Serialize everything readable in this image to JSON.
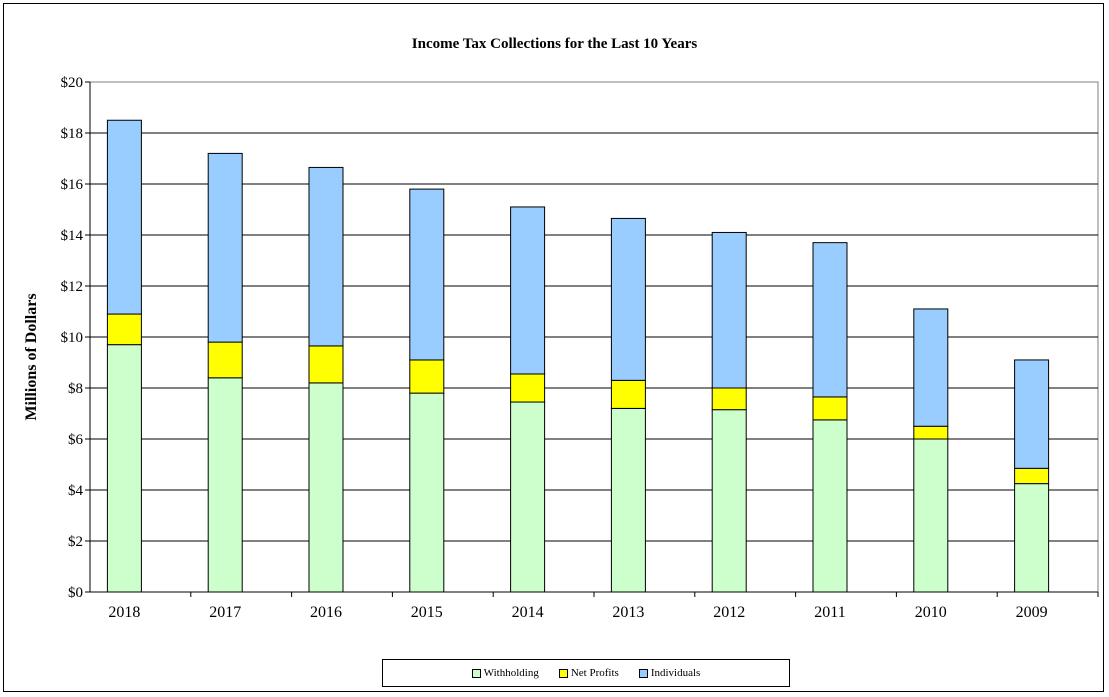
{
  "chart_data": {
    "type": "bar",
    "stacked": true,
    "title": "Income Tax Collections for the Last 10 Years",
    "xlabel": "",
    "ylabel": "Millions of Dollars",
    "ylim": [
      0,
      20
    ],
    "yticks": [
      "$0",
      "$2",
      "$4",
      "$6",
      "$8",
      "$10",
      "$12",
      "$14",
      "$16",
      "$18",
      "$20"
    ],
    "grid": true,
    "legend_position": "bottom",
    "categories": [
      "2018",
      "2017",
      "2016",
      "2015",
      "2014",
      "2013",
      "2012",
      "2011",
      "2010",
      "2009"
    ],
    "series": [
      {
        "name": "Withholding",
        "color": "#ccffcc",
        "values": [
          9.7,
          8.4,
          8.2,
          7.8,
          7.45,
          7.2,
          7.15,
          6.75,
          6.0,
          4.25
        ]
      },
      {
        "name": "Net Profits",
        "color": "#ffff00",
        "values": [
          1.2,
          1.4,
          1.45,
          1.3,
          1.1,
          1.1,
          0.85,
          0.9,
          0.5,
          0.6
        ]
      },
      {
        "name": "Individuals",
        "color": "#99ccff",
        "values": [
          7.6,
          7.4,
          7.0,
          6.7,
          6.55,
          6.35,
          6.1,
          6.05,
          4.6,
          4.25
        ]
      }
    ]
  }
}
